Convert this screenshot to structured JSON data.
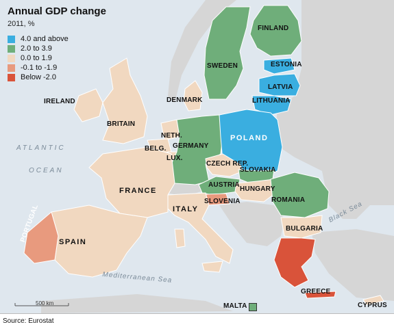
{
  "title": "Annual GDP change",
  "subtitle": "2011, %",
  "legend": [
    {
      "label": "4.0 and above",
      "color": "#3aaee0"
    },
    {
      "label": "2.0 to 3.9",
      "color": "#6fae7a"
    },
    {
      "label": "0.0 to 1.9",
      "color": "#f1d8c0"
    },
    {
      "label": "-0.1 to -1.9",
      "color": "#e89a7e"
    },
    {
      "label": "Below -2.0",
      "color": "#d9533a"
    }
  ],
  "colors": {
    "sea": "#dfe7ee",
    "non_eu": "#d6d6d6",
    "border": "#ffffff"
  },
  "countries": {
    "finland": {
      "label": "FINLAND",
      "category": "2.0 to 3.9"
    },
    "sweden": {
      "label": "SWEDEN",
      "category": "2.0 to 3.9"
    },
    "estonia": {
      "label": "ESTONIA",
      "category": "4.0 and above"
    },
    "latvia": {
      "label": "LATVIA",
      "category": "4.0 and above"
    },
    "lithuania": {
      "label": "LITHUANIA",
      "category": "4.0 and above"
    },
    "denmark": {
      "label": "DENMARK",
      "category": "0.0 to 1.9"
    },
    "ireland": {
      "label": "IRELAND",
      "category": "0.0 to 1.9"
    },
    "britain": {
      "label": "BRITAIN",
      "category": "0.0 to 1.9"
    },
    "netherlands": {
      "label": "NETH.",
      "category": "0.0 to 1.9"
    },
    "belgium": {
      "label": "BELG.",
      "category": "0.0 to 1.9"
    },
    "luxembourg": {
      "label": "LUX.",
      "category": "0.0 to 1.9"
    },
    "germany": {
      "label": "GERMANY",
      "category": "2.0 to 3.9"
    },
    "poland": {
      "label": "POLAND",
      "category": "4.0 and above"
    },
    "czech": {
      "label": "CZECH REP.",
      "category": "0.0 to 1.9"
    },
    "slovakia": {
      "label": "SLOVAKIA",
      "category": "2.0 to 3.9"
    },
    "austria": {
      "label": "AUSTRIA",
      "category": "2.0 to 3.9"
    },
    "hungary": {
      "label": "HUNGARY",
      "category": "0.0 to 1.9"
    },
    "slovenia": {
      "label": "SLOVENIA",
      "category": "-0.1 to -1.9"
    },
    "romania": {
      "label": "ROMANIA",
      "category": "2.0 to 3.9"
    },
    "bulgaria": {
      "label": "BULGARIA",
      "category": "0.0 to 1.9"
    },
    "france": {
      "label": "FRANCE",
      "category": "0.0 to 1.9"
    },
    "italy": {
      "label": "ITALY",
      "category": "0.0 to 1.9"
    },
    "spain": {
      "label": "SPAIN",
      "category": "0.0 to 1.9"
    },
    "portugal": {
      "label": "PORTUGAL",
      "category": "-0.1 to -1.9"
    },
    "greece": {
      "label": "GREECE",
      "category": "Below -2.0"
    },
    "malta": {
      "label": "MALTA",
      "category": "2.0 to 3.9"
    },
    "cyprus": {
      "label": "CYPRUS",
      "category": "0.0 to 1.9"
    }
  },
  "seas": {
    "atlantic": "ATLANTIC",
    "ocean": "OCEAN",
    "black_sea": "Black Sea",
    "mediterranean": "Mediterranean Sea"
  },
  "scale_label": "500 km",
  "source": "Source: Eurostat"
}
